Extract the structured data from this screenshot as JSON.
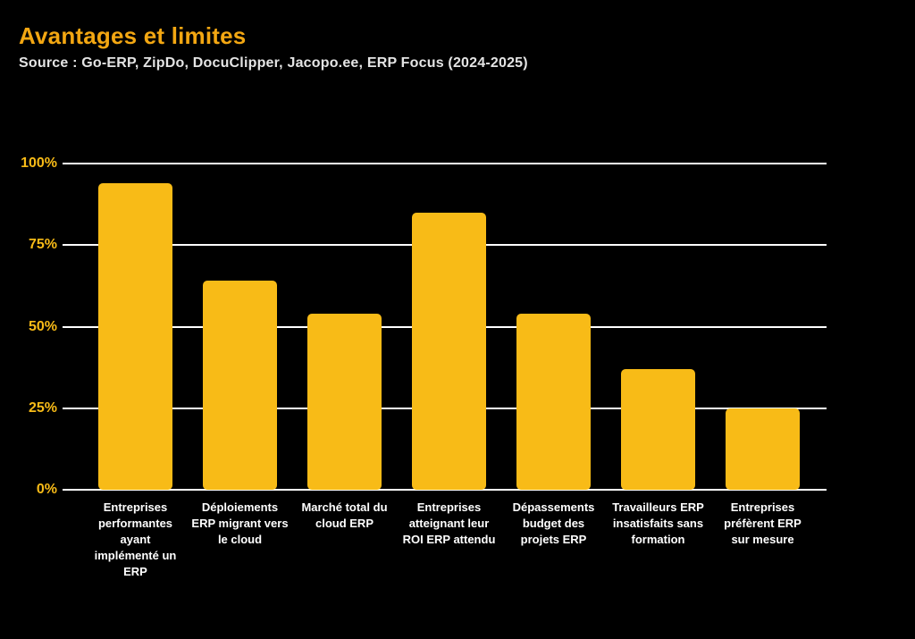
{
  "chart_data": {
    "type": "bar",
    "title": "Avantages et limites",
    "subtitle": "Source : Go-ERP, ZipDo, DocuClipper, Jacopo.ee, ERP Focus (2024-2025)",
    "categories": [
      "Entreprises\nperformantes\nayant\nimplémenté un\nERP",
      "Déploiements\nERP migrant vers\nle cloud",
      "Marché total du\ncloud ERP",
      "Entreprises\natteignant leur\nROI ERP attendu",
      "Dépassements\nbudget des\nprojets ERP",
      "Travailleurs ERP\ninsatisfaits sans\nformation",
      "Entreprises\npréfèrent ERP\nsur mesure"
    ],
    "values": [
      94,
      64,
      54,
      85,
      54,
      37,
      25
    ],
    "unit": "%",
    "xlabel": "",
    "ylabel": "",
    "ylim": [
      0,
      100
    ],
    "yticks": [
      0,
      25,
      50,
      75,
      100
    ],
    "ytick_labels": [
      "0%",
      "25%",
      "50%",
      "75%",
      "100%"
    ],
    "grid": "horizontal",
    "legend": "none",
    "colors": {
      "background": "#000000",
      "bar": "#F8BB17",
      "title": "#F3A712",
      "subtitle": "#E4E4E4",
      "ytick_labels": "#F8BB17",
      "category_labels": "#FFFFFF",
      "gridline": "#FFFFFF"
    }
  }
}
